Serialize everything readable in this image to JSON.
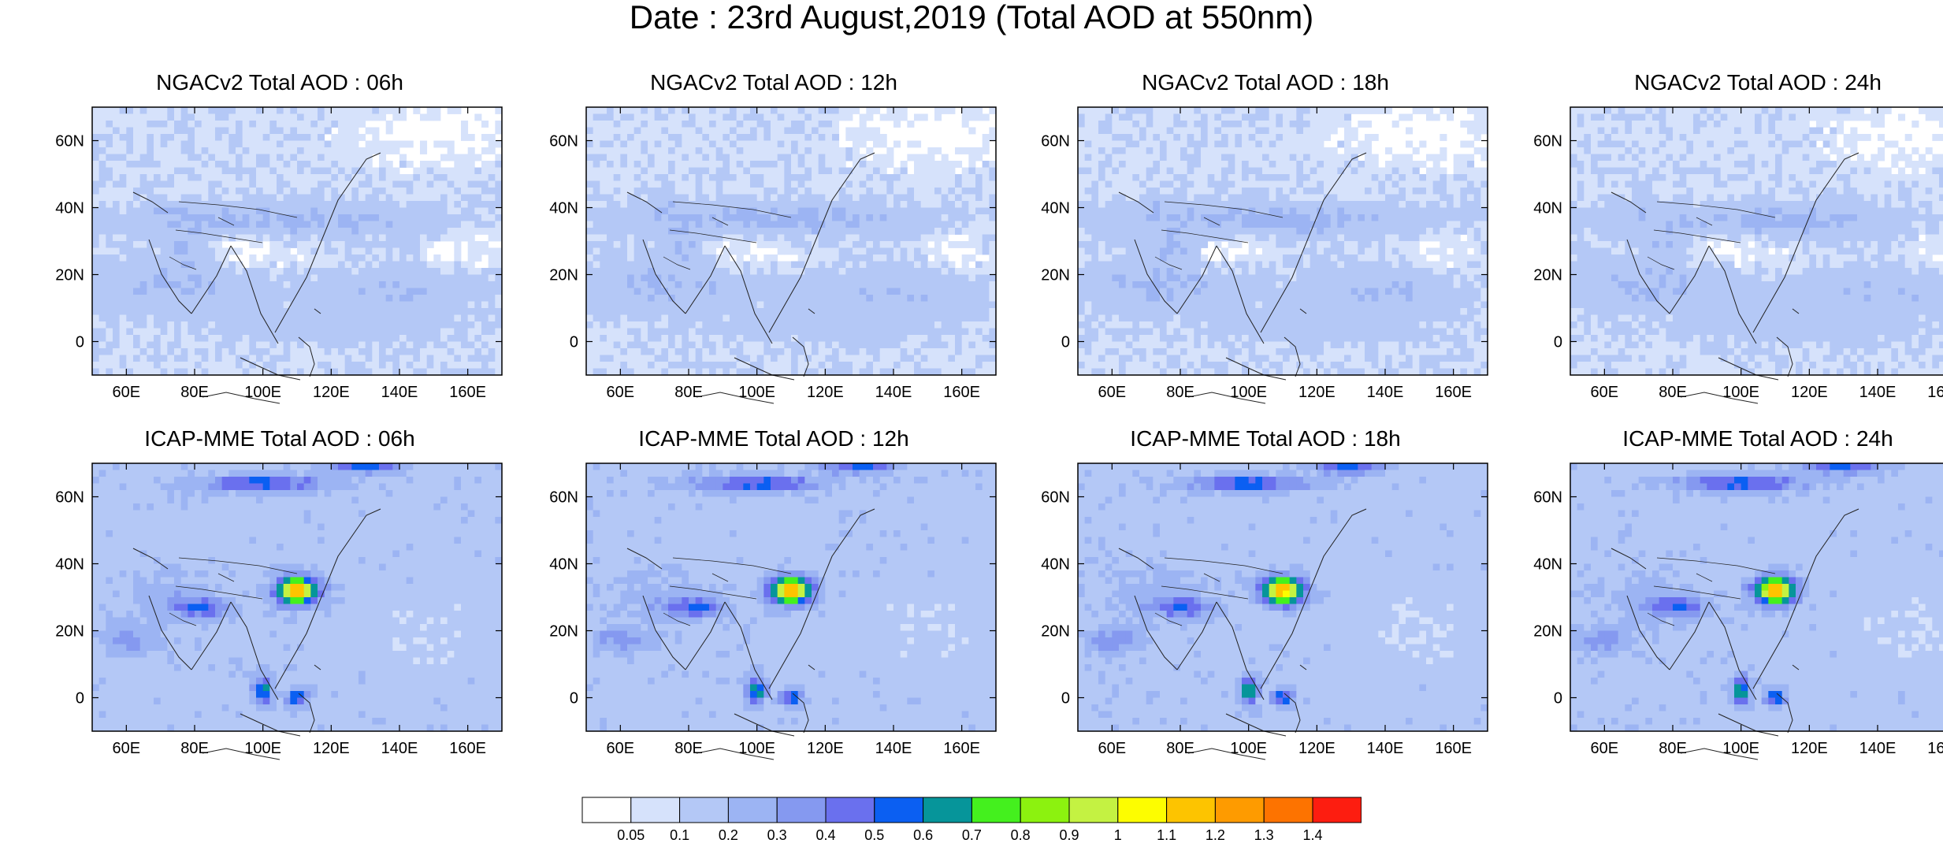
{
  "title": "Date : 23rd August,2019 (Total AOD at 550nm)",
  "lon_ticks": [
    "60E",
    "80E",
    "100E",
    "120E",
    "140E",
    "160E"
  ],
  "lat_ticks": [
    "60N",
    "40N",
    "20N",
    "0"
  ],
  "panels": [
    {
      "title": "NGACv2 Total AOD : 06h",
      "model": "ngac",
      "hour": 6
    },
    {
      "title": "NGACv2 Total AOD : 12h",
      "model": "ngac",
      "hour": 12
    },
    {
      "title": "NGACv2 Total AOD : 18h",
      "model": "ngac",
      "hour": 18
    },
    {
      "title": "NGACv2 Total AOD : 24h",
      "model": "ngac",
      "hour": 24
    },
    {
      "title": "ICAP-MME Total AOD : 06h",
      "model": "icap",
      "hour": 6
    },
    {
      "title": "ICAP-MME Total AOD : 12h",
      "model": "icap",
      "hour": 12
    },
    {
      "title": "ICAP-MME Total AOD : 18h",
      "model": "icap",
      "hour": 18
    },
    {
      "title": "ICAP-MME Total AOD : 24h",
      "model": "icap",
      "hour": 24
    }
  ],
  "colorbar": {
    "labels": [
      "0.05",
      "0.1",
      "0.2",
      "0.3",
      "0.4",
      "0.5",
      "0.6",
      "0.7",
      "0.8",
      "0.9",
      "1",
      "1.1",
      "1.2",
      "1.3",
      "1.4"
    ],
    "colors": [
      "#ffffff",
      "#d6e2fb",
      "#b4c8f6",
      "#9cb4f3",
      "#8599f0",
      "#6a70ee",
      "#0b5ff2",
      "#06959a",
      "#44f01e",
      "#8cf20f",
      "#c4f242",
      "#fdfd00",
      "#fdc400",
      "#fe9b00",
      "#fd7300",
      "#fd1d10"
    ]
  }
}
